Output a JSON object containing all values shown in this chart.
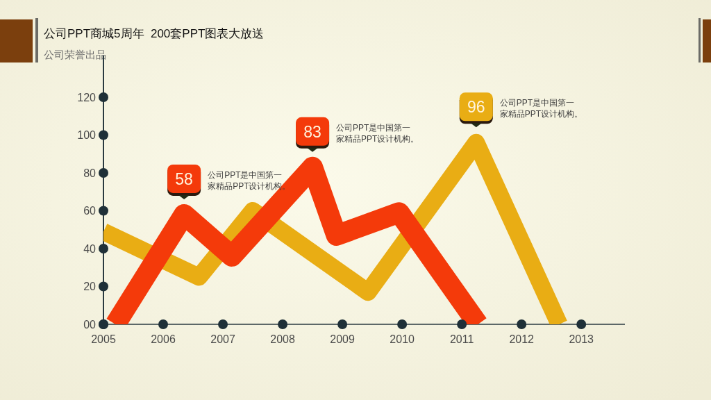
{
  "chart_data": {
    "type": "line",
    "title": "公司PPT商城5周年  200套PPT图表大放送",
    "subtitle": "公司荣誉出品",
    "series": [
      {
        "color": "#e9ad14",
        "x": [
          2005,
          2006.6,
          2007.5,
          2009.43,
          2011.24,
          2012.63
        ],
        "values": [
          49,
          25,
          60,
          17,
          96,
          0
        ],
        "value_labels": [
          null,
          null,
          null,
          null,
          "96",
          null
        ]
      },
      {
        "color": "#f43a0a",
        "x": [
          2005.2,
          2006.35,
          2007.15,
          2008.5,
          2008.9,
          2009.95,
          2011.27
        ],
        "values": [
          0,
          58,
          36,
          83,
          47,
          59,
          0
        ],
        "value_labels": [
          null,
          "58",
          null,
          "83",
          null,
          null,
          null
        ]
      }
    ],
    "xlim": [
      2005,
      2013.73
    ],
    "xticks": [
      2005,
      2006,
      2007,
      2008,
      2009,
      2010,
      2011,
      2012,
      2013
    ],
    "ylim": [
      0,
      142
    ],
    "yticks": [
      {
        "value": 0,
        "label": "00"
      },
      20,
      40,
      60,
      80,
      100,
      120
    ],
    "annotations": [
      "公司PPT是中国第一家精品PPT设计机构。",
      "公司PPT是中国第一家精品PPT设计机构。",
      "公司PPT是中国第一家精品PPT设计机构。"
    ]
  }
}
